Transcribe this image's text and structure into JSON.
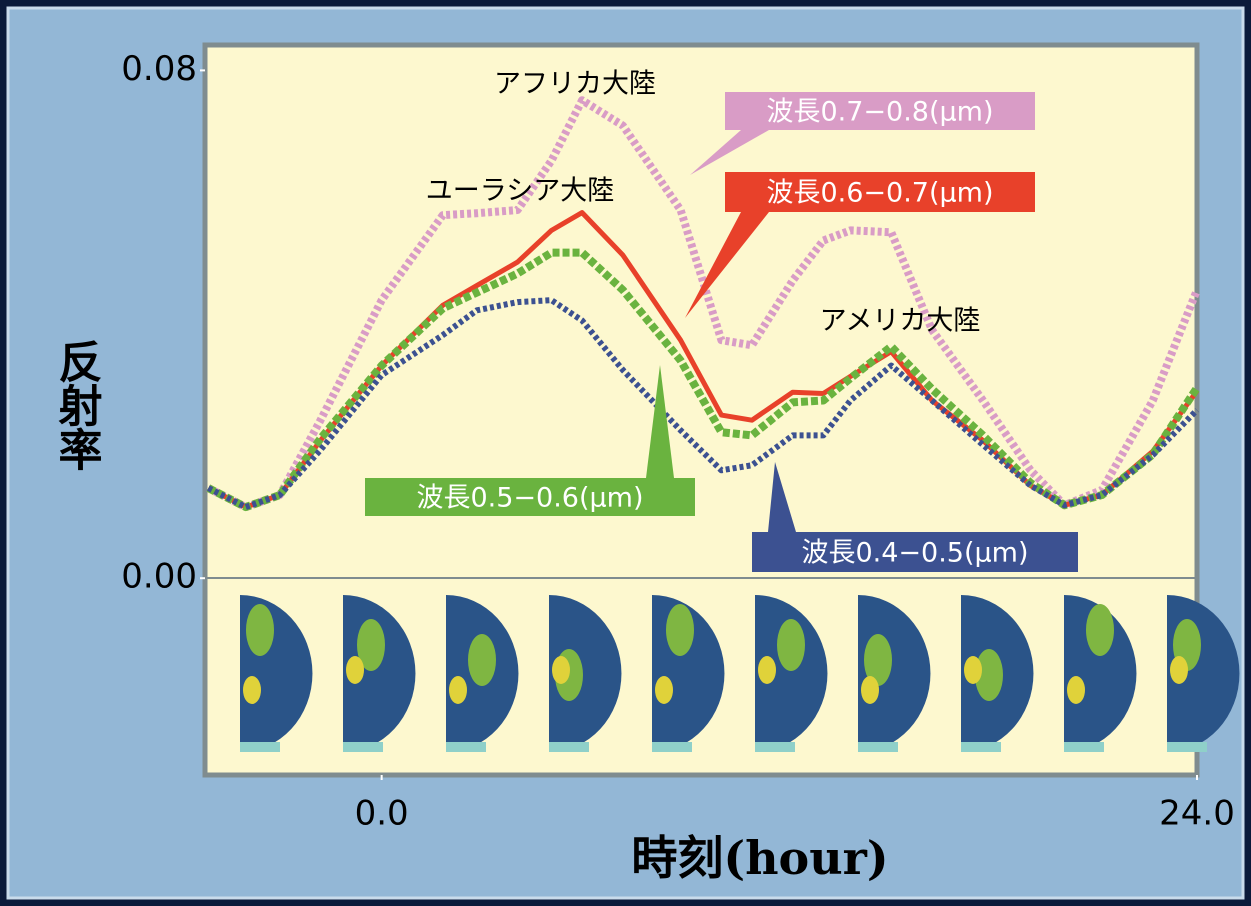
{
  "chart_data": {
    "type": "line",
    "xlabel": "時刻(hour)",
    "ylabel": "反射率",
    "x": [
      -5.1,
      -4.0,
      -3.0,
      -1.8,
      0,
      1.8,
      2.8,
      4.0,
      5.0,
      5.9,
      7.1,
      8.8,
      10.0,
      10.9,
      12.1,
      13.0,
      13.8,
      15.0,
      16.2,
      17.7,
      19.1,
      20.1,
      21.2,
      22.7,
      24.0
    ],
    "xlim": [
      -5.2,
      24.0
    ],
    "xticks": [
      {
        "value": 0,
        "label": "0.0"
      },
      {
        "value": 24,
        "label": "24.0"
      }
    ],
    "ylim": [
      -0.031,
      0.084
    ],
    "yticks": [
      {
        "value": 0,
        "label": "0.00"
      },
      {
        "value": 0.08,
        "label": "0.08"
      }
    ],
    "series": [
      {
        "name": "波長0.7−0.8(μm)",
        "color": "#d99cc6",
        "values": [
          0.0142,
          0.0112,
          0.0131,
          0.0249,
          0.0438,
          0.0572,
          0.0575,
          0.058,
          0.0658,
          0.0753,
          0.0713,
          0.058,
          0.0375,
          0.0367,
          0.0469,
          0.0532,
          0.0548,
          0.0545,
          0.0391,
          0.028,
          0.017,
          0.0115,
          0.0139,
          0.028,
          0.0454
        ]
      },
      {
        "name": "波長0.6−0.7(μm)",
        "color": "#e8412a",
        "values": [
          0.0142,
          0.0112,
          0.0131,
          0.0217,
          0.0335,
          0.043,
          0.0461,
          0.0498,
          0.0548,
          0.0576,
          0.0509,
          0.0375,
          0.0257,
          0.0249,
          0.0293,
          0.0291,
          0.0318,
          0.0357,
          0.028,
          0.0217,
          0.0146,
          0.0115,
          0.0131,
          0.02,
          0.0295
        ]
      },
      {
        "name": "波長0.5−0.6(μm)",
        "color": "#6ab33f",
        "values": [
          0.0142,
          0.0112,
          0.0131,
          0.022,
          0.0335,
          0.0425,
          0.045,
          0.048,
          0.0513,
          0.0513,
          0.0454,
          0.0343,
          0.023,
          0.0225,
          0.0277,
          0.028,
          0.0315,
          0.0365,
          0.0298,
          0.0225,
          0.015,
          0.0115,
          0.0131,
          0.0195,
          0.03
        ]
      },
      {
        "name": "波長0.4−0.5(μm)",
        "color": "#3c5191",
        "values": [
          0.0142,
          0.0112,
          0.0131,
          0.0202,
          0.032,
          0.0383,
          0.0422,
          0.0435,
          0.0438,
          0.0406,
          0.0328,
          0.0233,
          0.017,
          0.0178,
          0.0225,
          0.0225,
          0.028,
          0.0335,
          0.028,
          0.021,
          0.0146,
          0.0115,
          0.0131,
          0.0194,
          0.0265
        ]
      }
    ],
    "annotations": [
      {
        "text": "アフリカ大陸"
      },
      {
        "text": "ユーラシア大陸"
      },
      {
        "text": "アメリカ大陸"
      }
    ]
  }
}
